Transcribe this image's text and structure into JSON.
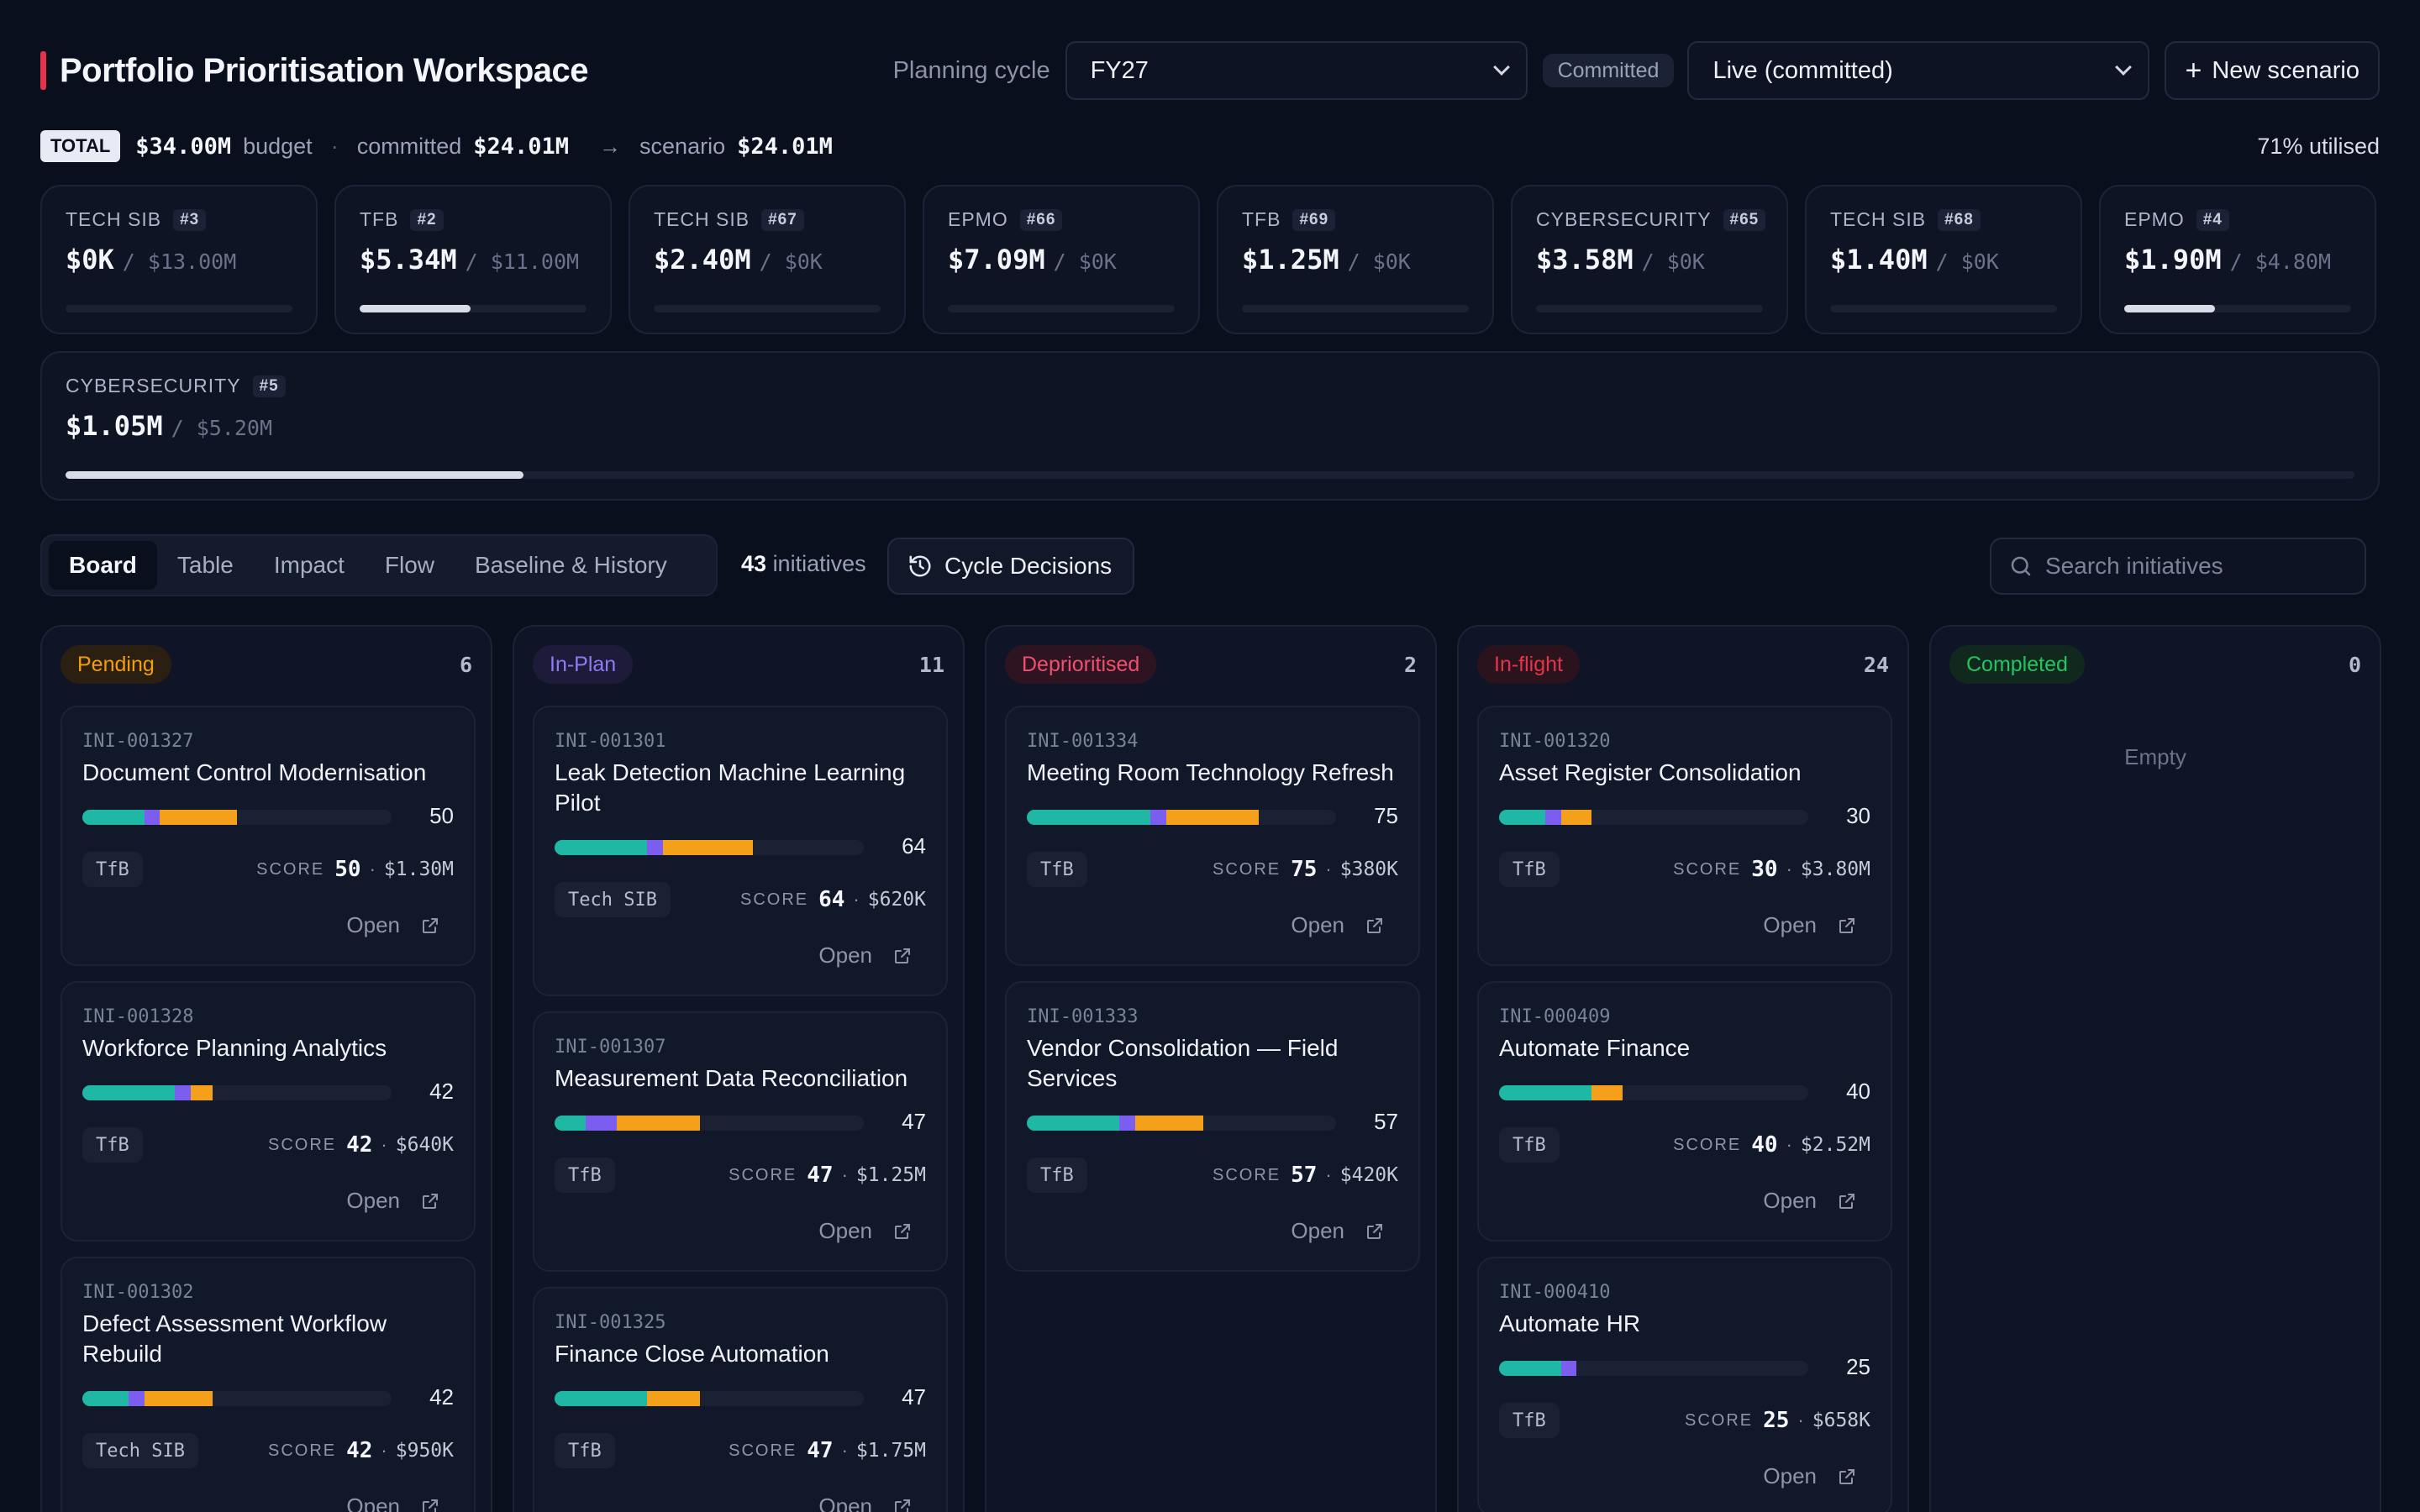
{
  "header": {
    "title": "Portfolio Prioritisation Workspace",
    "planning_label": "Planning cycle",
    "cycle_value": "FY27",
    "status_pill": "Committed",
    "scenario_value": "Live (committed)",
    "new_scenario": "New scenario"
  },
  "summary": {
    "total_tag": "TOTAL",
    "budget_value": "$34.00M",
    "budget_label": "budget",
    "committed_label": "committed",
    "committed_value": "$24.01M",
    "scenario_label": "scenario",
    "scenario_value": "$24.01M",
    "utilised": "71% utilised"
  },
  "budgets": [
    {
      "name": "TECH SIB",
      "num": "#3",
      "amount": "$0K",
      "cap": "/ $13.00M",
      "fill": 0
    },
    {
      "name": "TFB",
      "num": "#2",
      "amount": "$5.34M",
      "cap": "/ $11.00M",
      "fill": 0.49
    },
    {
      "name": "TECH SIB",
      "num": "#67",
      "amount": "$2.40M",
      "cap": "/ $0K",
      "fill": 0
    },
    {
      "name": "EPMO",
      "num": "#66",
      "amount": "$7.09M",
      "cap": "/ $0K",
      "fill": 0
    },
    {
      "name": "TFB",
      "num": "#69",
      "amount": "$1.25M",
      "cap": "/ $0K",
      "fill": 0
    },
    {
      "name": "CYBERSECURITY",
      "num": "#65",
      "amount": "$3.58M",
      "cap": "/ $0K",
      "fill": 0
    },
    {
      "name": "TECH SIB",
      "num": "#68",
      "amount": "$1.40M",
      "cap": "/ $0K",
      "fill": 0
    },
    {
      "name": "EPMO",
      "num": "#4",
      "amount": "$1.90M",
      "cap": "/ $4.80M",
      "fill": 0.4
    },
    {
      "name": "CYBERSECURITY",
      "num": "#5",
      "amount": "$1.05M",
      "cap": "/ $5.20M",
      "fill": 0.2
    }
  ],
  "tabs": [
    "Board",
    "Table",
    "Impact",
    "Flow",
    "Baseline & History"
  ],
  "initiative_count": "43",
  "initiative_label": "initiatives",
  "cycle_decisions": "Cycle Decisions",
  "search_placeholder": "Search initiatives",
  "columns": [
    {
      "label": "Pending",
      "count": "6",
      "color": "#f59e0b",
      "bg": "#2a1f10"
    },
    {
      "label": "In-Plan",
      "count": "11",
      "color": "#8b7cf6",
      "bg": "#1e1b3a"
    },
    {
      "label": "Deprioritised",
      "count": "2",
      "color": "#f0506e",
      "bg": "#2e1420"
    },
    {
      "label": "In-flight",
      "count": "24",
      "color": "#e5344a",
      "bg": "#2a131d"
    },
    {
      "label": "Completed",
      "count": "0",
      "color": "#22c55e",
      "bg": "#10281d"
    }
  ],
  "empty_label": "Empty",
  "score_label": "SCORE",
  "open_label": "Open",
  "cards": {
    "pending": [
      {
        "id": "INI-001327",
        "title": "Document Control Modernisation",
        "score": "50",
        "tag": "TfB",
        "cost": "$1.30M",
        "segs": [
          0.2,
          0.05,
          0.25
        ]
      },
      {
        "id": "INI-001328",
        "title": "Workforce Planning Analytics",
        "score": "42",
        "tag": "TfB",
        "cost": "$640K",
        "segs": [
          0.3,
          0.05,
          0.07
        ]
      },
      {
        "id": "INI-001302",
        "title": "Defect Assessment Workflow Rebuild",
        "score": "42",
        "tag": "Tech SIB",
        "cost": "$950K",
        "segs": [
          0.15,
          0.05,
          0.22
        ]
      }
    ],
    "inplan": [
      {
        "id": "INI-001301",
        "title": "Leak Detection Machine Learning Pilot",
        "score": "64",
        "tag": "Tech SIB",
        "cost": "$620K",
        "segs": [
          0.3,
          0.05,
          0.29
        ]
      },
      {
        "id": "INI-001307",
        "title": "Measurement Data Reconciliation",
        "score": "47",
        "tag": "TfB",
        "cost": "$1.25M",
        "segs": [
          0.1,
          0.1,
          0.27
        ]
      },
      {
        "id": "INI-001325",
        "title": "Finance Close Automation",
        "score": "47",
        "tag": "TfB",
        "cost": "$1.75M",
        "segs": [
          0.3,
          0,
          0.17
        ]
      }
    ],
    "depri": [
      {
        "id": "INI-001334",
        "title": "Meeting Room Technology Refresh",
        "score": "75",
        "tag": "TfB",
        "cost": "$380K",
        "segs": [
          0.4,
          0.05,
          0.3
        ]
      },
      {
        "id": "INI-001333",
        "title": "Vendor Consolidation — Field Services",
        "score": "57",
        "tag": "TfB",
        "cost": "$420K",
        "segs": [
          0.3,
          0.05,
          0.22
        ]
      }
    ],
    "inflight": [
      {
        "id": "INI-001320",
        "title": "Asset Register Consolidation",
        "score": "30",
        "tag": "TfB",
        "cost": "$3.80M",
        "segs": [
          0.15,
          0.05,
          0.1
        ]
      },
      {
        "id": "INI-000409",
        "title": "Automate Finance",
        "score": "40",
        "tag": "TfB",
        "cost": "$2.52M",
        "segs": [
          0.3,
          0,
          0.1
        ]
      },
      {
        "id": "INI-000410",
        "title": "Automate HR",
        "score": "25",
        "tag": "TfB",
        "cost": "$658K",
        "segs": [
          0.2,
          0.05,
          0
        ]
      }
    ]
  },
  "colors": {
    "impact": "#1fb8a5",
    "strategic": "#7b5ef0",
    "value": "#f5a01a"
  }
}
